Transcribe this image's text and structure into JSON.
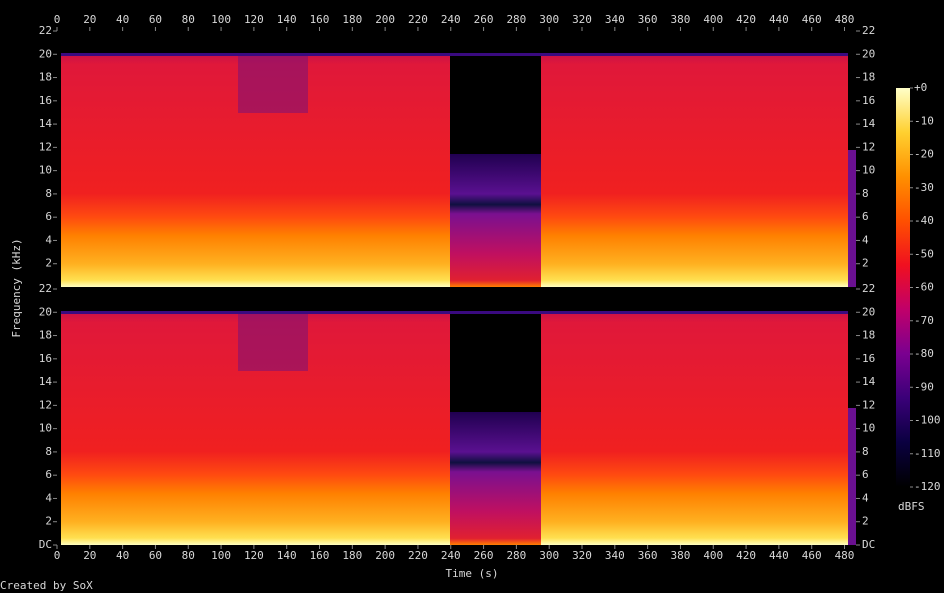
{
  "chart_data": {
    "type": "spectrogram",
    "xlabel": "Time (s)",
    "ylabel": "Frequency (kHz)",
    "xlim": [
      0,
      487
    ],
    "xticks": [
      0,
      20,
      40,
      60,
      80,
      100,
      120,
      140,
      160,
      180,
      200,
      220,
      240,
      260,
      280,
      300,
      320,
      340,
      360,
      380,
      400,
      420,
      440,
      460,
      480
    ],
    "channels": [
      {
        "ylim": [
          0,
          22
        ],
        "yticks": [
          2,
          4,
          6,
          8,
          10,
          12,
          14,
          16,
          18,
          20,
          22
        ]
      },
      {
        "ylim": [
          0,
          22
        ],
        "yticks": [
          {
            "value": 0,
            "label": "DC"
          },
          2,
          4,
          6,
          8,
          10,
          12,
          14,
          16,
          18,
          20,
          22
        ]
      }
    ],
    "colorbar": {
      "label": "dBFS",
      "lim": [
        -120,
        0
      ],
      "ticks": [
        {
          "value": 0,
          "label": "+0"
        },
        -10,
        -20,
        -30,
        -40,
        -50,
        -60,
        -70,
        -80,
        -90,
        -100,
        -110,
        -120
      ],
      "colors": [
        "#000000",
        "#0a0040",
        "#3a0078",
        "#7a0090",
        "#c0006a",
        "#f01020",
        "#ff5000",
        "#ff9000",
        "#ffd030",
        "#ffffc8"
      ]
    }
  },
  "footer": "Created by SoX"
}
